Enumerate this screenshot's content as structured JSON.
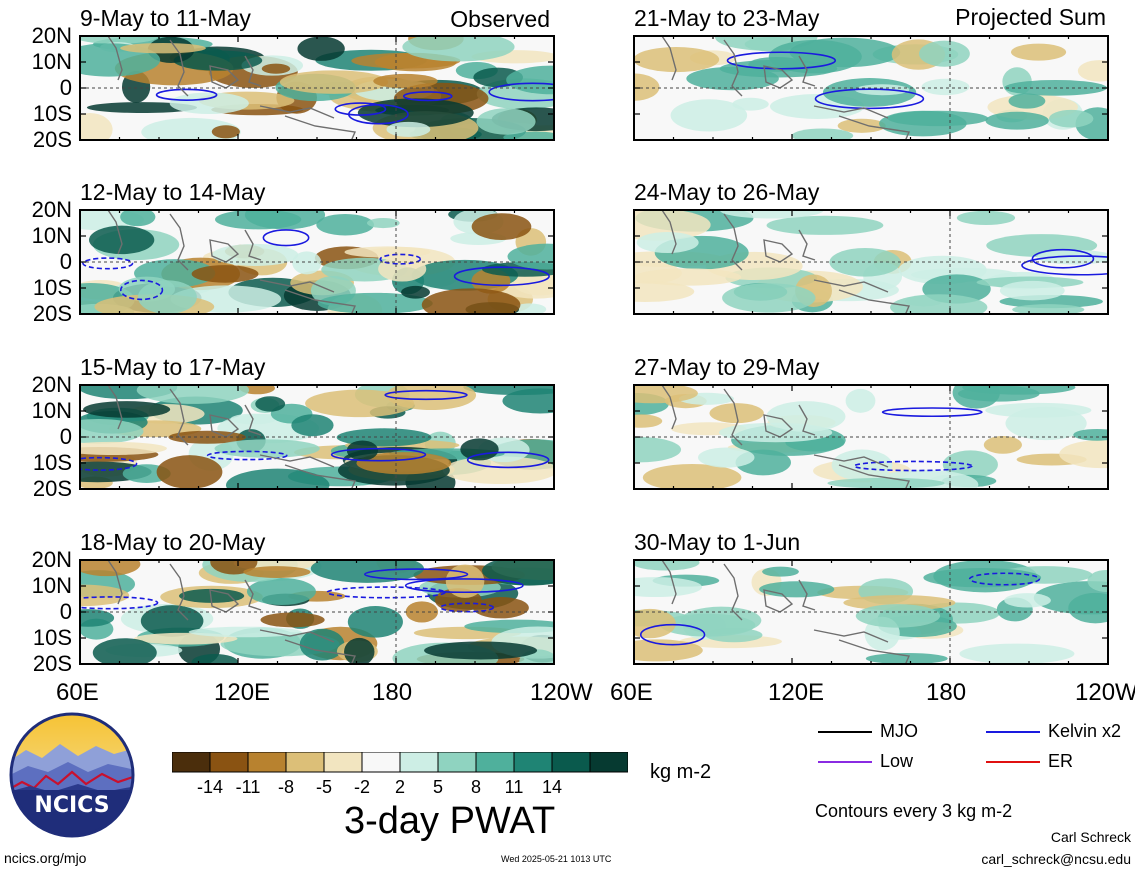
{
  "chart_data": {
    "type": "heatmap",
    "title": "3-day PWAT",
    "units": "kg m-2",
    "column_labels": {
      "left": "Observed",
      "right": "Projected Sum"
    },
    "panels": [
      {
        "label": "9-May to 11-May",
        "column": "Observed"
      },
      {
        "label": "12-May to 14-May",
        "column": "Observed"
      },
      {
        "label": "15-May to 17-May",
        "column": "Observed"
      },
      {
        "label": "18-May to 20-May",
        "column": "Observed"
      },
      {
        "label": "21-May to 23-May",
        "column": "Projected Sum"
      },
      {
        "label": "24-May to 26-May",
        "column": "Projected Sum"
      },
      {
        "label": "27-May to 29-May",
        "column": "Projected Sum"
      },
      {
        "label": "30-May to 1-Jun",
        "column": "Projected Sum"
      }
    ],
    "lat_ticks": [
      "20N",
      "10N",
      "0",
      "10S",
      "20S"
    ],
    "lon_ticks": [
      "60E",
      "120E",
      "180",
      "120W"
    ],
    "x_range": [
      "60E",
      "120W"
    ],
    "y_range": [
      "20S",
      "20N"
    ],
    "colorbar": {
      "labels": [
        "-14",
        "-11",
        "-8",
        "-5",
        "-2",
        "2",
        "5",
        "8",
        "11",
        "14"
      ],
      "colors": [
        "#4b2e0c",
        "#8a5312",
        "#b8822f",
        "#dcbf78",
        "#f2e5c0",
        "#f8f8f8",
        "#cdeee5",
        "#8fd3c0",
        "#4fb09c",
        "#1f8474",
        "#0a5a4d",
        "#063a31"
      ]
    },
    "contour_legend": [
      {
        "label": "MJO",
        "color": "#000000"
      },
      {
        "label": "Kelvin x2",
        "color": "#1a1adf"
      },
      {
        "label": "Low",
        "color": "#8a2be2"
      },
      {
        "label": "ER",
        "color": "#e01010"
      }
    ],
    "contour_note": "Contours every 3 kg m-2"
  },
  "logo": {
    "text": "NCICS"
  },
  "footer": {
    "url": "ncics.org/mjo",
    "timestamp": "Wed 2025-05-21 1013 UTC",
    "author": "Carl Schreck",
    "email": "carl_schreck@ncsu.edu"
  }
}
